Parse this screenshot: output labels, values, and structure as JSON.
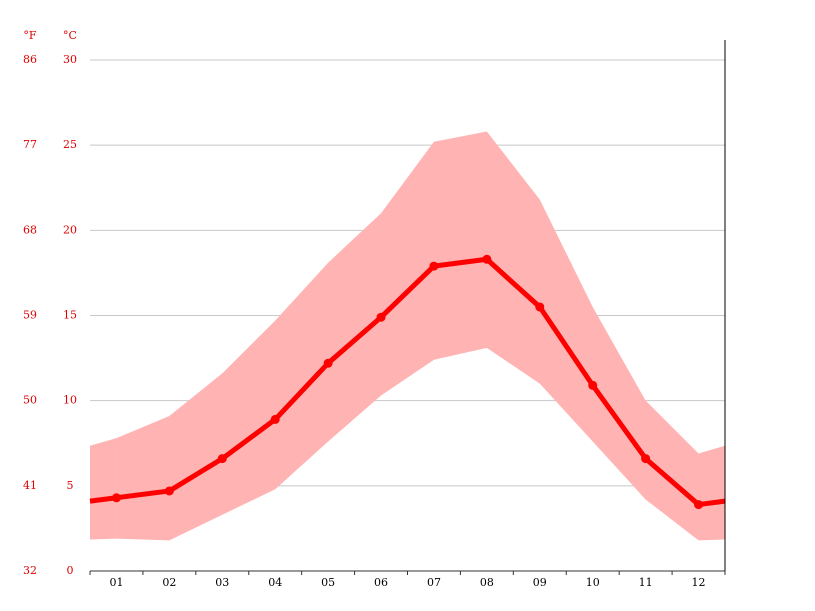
{
  "chart_data": {
    "type": "line",
    "y_label": "°C",
    "y2_label": "°F",
    "categories": [
      "01",
      "02",
      "03",
      "04",
      "05",
      "06",
      "07",
      "08",
      "09",
      "10",
      "11",
      "12"
    ],
    "series": [
      {
        "color": "#ff0000",
        "values": [
          4.3,
          4.7,
          6.6,
          8.9,
          12.2,
          14.9,
          17.9,
          18.3,
          15.5,
          10.9,
          6.6,
          3.9
        ]
      }
    ],
    "range": {
      "color": "#ffb3b3",
      "high": [
        7.8,
        9.1,
        11.6,
        14.7,
        18.1,
        21.0,
        25.2,
        25.8,
        21.8,
        15.5,
        10.0,
        6.9
      ],
      "low": [
        1.9,
        1.8,
        3.3,
        4.8,
        7.6,
        10.3,
        12.4,
        13.1,
        11.0,
        7.6,
        4.2,
        1.8
      ]
    },
    "ylim": [
      0,
      30
    ],
    "yticks": [
      0,
      5,
      10,
      15,
      20,
      25,
      30
    ],
    "y2lim": [
      32,
      86
    ],
    "y2ticks": [
      32,
      41,
      50,
      59,
      68,
      77,
      86
    ],
    "grid": true
  }
}
